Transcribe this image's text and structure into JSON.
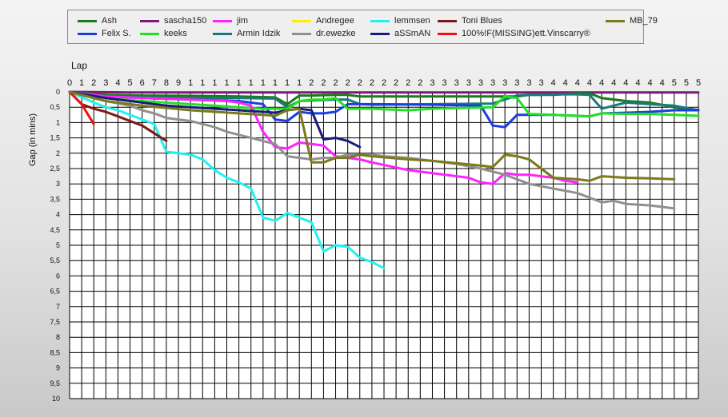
{
  "legend": [
    {
      "name": "Ash",
      "color": "#1a7a1a"
    },
    {
      "name": "Felix S.",
      "color": "#1a3fe0"
    },
    {
      "name": "sascha150",
      "color": "#7a1a7a"
    },
    {
      "name": "keeks",
      "color": "#22e022"
    },
    {
      "name": "jim",
      "color": "#ff22ff"
    },
    {
      "name": "Armin Idzik",
      "color": "#1a7a7a"
    },
    {
      "name": "Andregee",
      "color": "#ffee00"
    },
    {
      "name": "dr.ewezke",
      "color": "#909090"
    },
    {
      "name": "lemmsen",
      "color": "#22f0f0"
    },
    {
      "name": "aSSmAN",
      "color": "#1a1a7a"
    },
    {
      "name": "Toni Blues",
      "color": "#7a1a1a"
    },
    {
      "name": "100%!F(MISSING)ett.Vinscarry®",
      "color": "#ee1111"
    },
    {
      "name": "MB_79",
      "color": "#7a7a1a"
    }
  ],
  "chart_data": {
    "type": "line",
    "xlabel": "Lap",
    "ylabel": "Gap (in mins)",
    "xlim": [
      0,
      52
    ],
    "ylim": [
      0,
      10
    ],
    "y_inverted": true,
    "grid": true,
    "x_tick_labels": [
      "0",
      "1",
      "2",
      "3",
      "4",
      "5",
      "6",
      "7",
      "8",
      "9",
      "1",
      "1",
      "1",
      "1",
      "1",
      "1",
      "1",
      "1",
      "1",
      "1",
      "2",
      "2",
      "2",
      "2",
      "2",
      "2",
      "2",
      "2",
      "2",
      "2",
      "3",
      "3",
      "3",
      "3",
      "3",
      "3",
      "3",
      "3",
      "3",
      "3",
      "4",
      "4",
      "4",
      "4",
      "4",
      "4",
      "4",
      "4",
      "4",
      "4",
      "5",
      "5",
      "5"
    ],
    "y_tick_labels": [
      "0",
      "0,5",
      "1",
      "1,5",
      "2",
      "2,5",
      "3",
      "3,5",
      "4",
      "4,5",
      "5",
      "5,5",
      "6",
      "6,5",
      "7",
      "7,5",
      "8",
      "8,5",
      "9",
      "9,5",
      "10"
    ],
    "series": [
      {
        "name": "sascha150",
        "color": "#7a1a7a",
        "x": [
          0,
          5,
          10,
          15,
          18,
          19,
          20,
          25,
          30,
          35,
          40,
          45,
          50,
          52
        ],
        "y": [
          0,
          0.02,
          0.02,
          0.02,
          0.02,
          0.02,
          0.02,
          0.02,
          0.02,
          0.02,
          0.02,
          0.02,
          0.02,
          0.02
        ]
      },
      {
        "name": "Ash",
        "color": "#1a7a1a",
        "x": [
          0,
          3,
          6,
          10,
          14,
          17,
          18,
          19,
          20,
          22,
          23,
          24,
          25,
          30,
          35,
          37,
          38,
          39,
          40,
          42,
          43,
          44,
          46,
          48,
          50,
          52
        ],
        "y": [
          0,
          0.1,
          0.12,
          0.13,
          0.15,
          0.18,
          0.4,
          0.12,
          0.12,
          0.1,
          0.1,
          0.15,
          0.15,
          0.15,
          0.15,
          0.15,
          0.1,
          0.1,
          0.1,
          0.05,
          0.05,
          0.2,
          0.3,
          0.35,
          0.5,
          0.6
        ]
      },
      {
        "name": "Armin Idzik",
        "color": "#1a7a7a",
        "x": [
          0,
          3,
          6,
          10,
          14,
          17,
          18,
          19,
          20,
          22,
          23,
          24,
          25,
          30,
          35,
          37,
          38,
          39,
          40,
          42,
          43,
          44,
          46,
          48,
          50,
          52
        ],
        "y": [
          0,
          0.15,
          0.18,
          0.2,
          0.2,
          0.22,
          0.5,
          0.3,
          0.28,
          0.25,
          0.25,
          0.4,
          0.42,
          0.4,
          0.38,
          0.12,
          0.1,
          0.1,
          0.08,
          0.08,
          0.1,
          0.55,
          0.35,
          0.4,
          0.45,
          0.6
        ]
      },
      {
        "name": "Felix S.",
        "color": "#1a3fe0",
        "x": [
          0,
          3,
          6,
          10,
          14,
          16,
          17,
          18,
          19,
          20,
          21,
          22,
          23,
          24,
          25,
          30,
          34,
          35,
          36,
          37,
          38,
          40,
          42,
          43,
          44,
          46,
          48,
          50,
          52
        ],
        "y": [
          0,
          0.15,
          0.2,
          0.25,
          0.3,
          0.4,
          0.9,
          0.95,
          0.65,
          0.7,
          0.7,
          0.65,
          0.4,
          0.4,
          0.4,
          0.42,
          0.45,
          1.1,
          1.15,
          0.75,
          0.75,
          0.75,
          0.78,
          0.8,
          0.7,
          0.68,
          0.65,
          0.6,
          0.6
        ]
      },
      {
        "name": "keeks",
        "color": "#22e022",
        "x": [
          0,
          3,
          6,
          10,
          14,
          16,
          17,
          18,
          19,
          20,
          21,
          22,
          23,
          24,
          25,
          28,
          30,
          35,
          36,
          37,
          38,
          40,
          42,
          43,
          44,
          46,
          48,
          50,
          52
        ],
        "y": [
          0,
          0.2,
          0.3,
          0.4,
          0.5,
          0.55,
          0.55,
          0.55,
          0.3,
          0.25,
          0.25,
          0.2,
          0.55,
          0.55,
          0.55,
          0.6,
          0.55,
          0.5,
          0.15,
          0.2,
          0.72,
          0.75,
          0.78,
          0.8,
          0.7,
          0.72,
          0.72,
          0.75,
          0.78
        ]
      },
      {
        "name": "jim",
        "color": "#ff22ff",
        "x": [
          0,
          3,
          6,
          10,
          13,
          14,
          15,
          16,
          17,
          18,
          19,
          20,
          21,
          22,
          23,
          24,
          25,
          28,
          30,
          33,
          34,
          35,
          36,
          37,
          38,
          40,
          41,
          42
        ],
        "y": [
          0,
          0.15,
          0.2,
          0.25,
          0.3,
          0.35,
          0.45,
          1.3,
          1.8,
          1.85,
          1.65,
          1.7,
          1.75,
          2.1,
          2.15,
          2.2,
          2.3,
          2.55,
          2.65,
          2.8,
          2.95,
          3,
          2.65,
          2.7,
          2.7,
          2.8,
          2.9,
          2.95
        ]
      },
      {
        "name": "dr.ewezke",
        "color": "#909090",
        "x": [
          0,
          3,
          5,
          6,
          7,
          8,
          9,
          10,
          11,
          12,
          13,
          14,
          15,
          16,
          17,
          18,
          19,
          20,
          21,
          22,
          23,
          24,
          25,
          26,
          28,
          30,
          32,
          34,
          36,
          38,
          40,
          42,
          44,
          45,
          46,
          48,
          50
        ],
        "y": [
          0,
          0.3,
          0.45,
          0.6,
          0.7,
          0.85,
          0.9,
          0.95,
          1.05,
          1.15,
          1.3,
          1.4,
          1.5,
          1.6,
          1.7,
          2.1,
          2.15,
          2.2,
          2.15,
          2.15,
          2.05,
          2.05,
          2.05,
          2.1,
          2.15,
          2.25,
          2.35,
          2.5,
          2.7,
          3,
          3.15,
          3.3,
          3.6,
          3.55,
          3.65,
          3.7,
          3.8
        ]
      },
      {
        "name": "lemmsen",
        "color": "#22f0f0",
        "x": [
          0,
          2,
          3,
          4,
          5,
          6,
          7,
          8,
          9,
          10,
          11,
          12,
          13,
          14,
          15,
          16,
          17,
          18,
          19,
          20,
          21,
          22,
          23,
          24,
          25,
          26
        ],
        "y": [
          0,
          0.35,
          0.5,
          0.6,
          0.75,
          0.9,
          1.05,
          1.95,
          2,
          2.05,
          2.2,
          2.55,
          2.8,
          2.95,
          3.15,
          4.1,
          4.2,
          3.95,
          4.1,
          4.25,
          5.2,
          5,
          5.05,
          5.4,
          5.55,
          5.75
        ]
      },
      {
        "name": "aSSmAN",
        "color": "#1a1a7a",
        "x": [
          0,
          3,
          6,
          8,
          10,
          12,
          14,
          16,
          17,
          18,
          19,
          20,
          21,
          22,
          23,
          24
        ],
        "y": [
          0,
          0.2,
          0.35,
          0.45,
          0.5,
          0.55,
          0.6,
          0.65,
          0.68,
          0.6,
          0.55,
          0.6,
          1.55,
          1.5,
          1.6,
          1.8
        ]
      },
      {
        "name": "Toni Blues",
        "color": "#7a1a1a",
        "x": [
          0,
          1,
          2,
          3,
          4,
          5,
          6,
          7,
          8
        ],
        "y": [
          0,
          0.4,
          0.55,
          0.65,
          0.8,
          0.95,
          1.1,
          1.35,
          1.6
        ]
      },
      {
        "name": "100%!F(MISSING)ett.Vinscarry®",
        "color": "#ee1111",
        "x": [
          0,
          1,
          2
        ],
        "y": [
          0,
          0.4,
          1.05
        ]
      },
      {
        "name": "MB_79",
        "color": "#7a7a1a",
        "x": [
          0,
          3,
          6,
          10,
          14,
          16,
          17,
          18,
          19,
          20,
          21,
          22,
          23,
          24,
          25,
          28,
          30,
          34,
          35,
          36,
          37,
          38,
          40,
          42,
          43,
          44,
          46,
          48,
          50
        ],
        "y": [
          0,
          0.3,
          0.45,
          0.6,
          0.7,
          0.75,
          0.78,
          0.6,
          0.55,
          2.3,
          2.3,
          2.15,
          2.15,
          2.05,
          2.1,
          2.2,
          2.25,
          2.4,
          2.45,
          2.05,
          2.1,
          2.2,
          2.8,
          2.85,
          2.9,
          2.75,
          2.8,
          2.82,
          2.85
        ]
      }
    ]
  }
}
